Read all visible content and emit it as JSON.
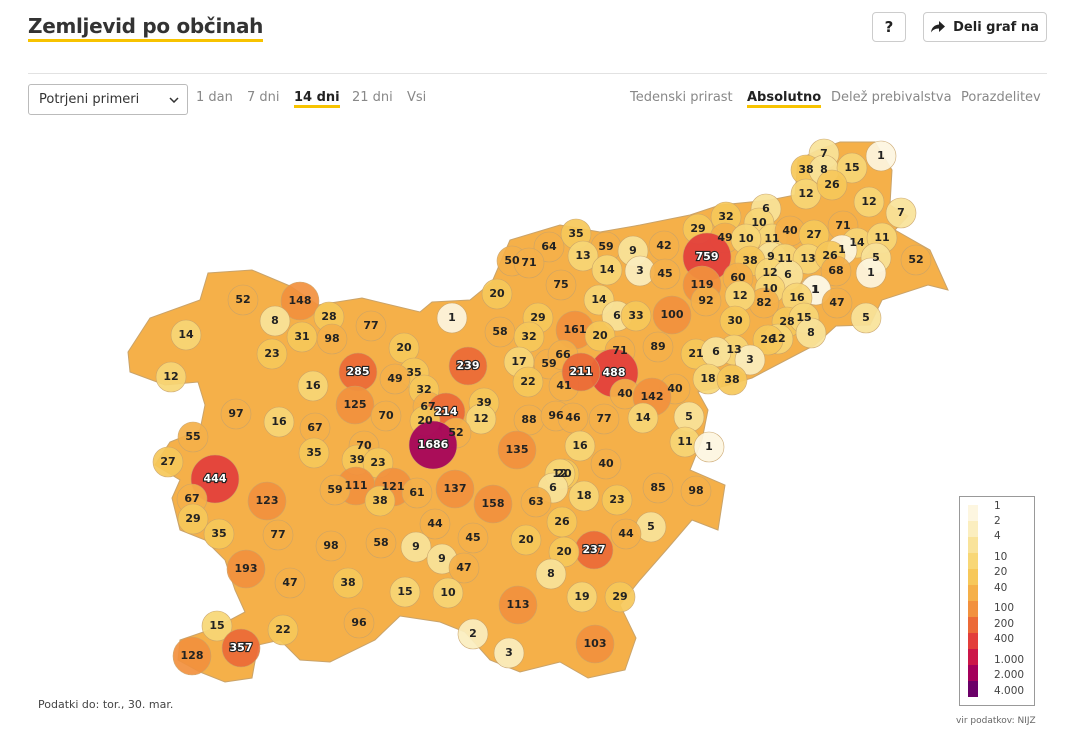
{
  "header": {
    "title": "Zemljevid po občinah",
    "help_label": "?",
    "share_label": "Deli graf na",
    "share_icon": "share-arrow-icon"
  },
  "controls": {
    "measure": {
      "selected": "Potrjeni primeri"
    },
    "ranges": [
      {
        "label": "1 dan",
        "active": false
      },
      {
        "label": "7 dni",
        "active": false
      },
      {
        "label": "14 dni",
        "active": true
      },
      {
        "label": "21 dni",
        "active": false
      },
      {
        "label": "Vsi",
        "active": false
      }
    ],
    "modes": [
      {
        "label": "Tedenski prirast",
        "active": false
      },
      {
        "label": "Absolutno",
        "active": true
      },
      {
        "label": "Delež prebivalstva",
        "active": false
      },
      {
        "label": "Porazdelitev",
        "active": false
      }
    ]
  },
  "legend": {
    "labels": [
      "1",
      "2",
      "4",
      "10",
      "20",
      "40",
      "100",
      "200",
      "400",
      "1.000",
      "2.000",
      "4.000"
    ],
    "colors": [
      "#fdf6e0",
      "#fbeebf",
      "#f9e39a",
      "#f8d776",
      "#f7c85a",
      "#f5b049",
      "#f2913e",
      "#ec6a37",
      "#e33e3b",
      "#cc1748",
      "#a4005b",
      "#6b0068"
    ]
  },
  "footnote": "Podatki do: tor., 30. mar.",
  "source": "vir podatkov: NIJZ",
  "municipality_values": [
    7,
    1,
    38,
    8,
    15,
    12,
    26,
    12,
    7,
    6,
    32,
    29,
    10,
    11,
    49,
    10,
    40,
    27,
    71,
    14,
    11,
    1,
    5,
    1,
    759,
    9,
    11,
    13,
    26,
    68,
    1,
    52,
    38,
    60,
    12,
    6,
    35,
    59,
    9,
    42,
    64,
    50,
    71,
    13,
    14,
    3,
    45,
    119,
    10,
    1,
    75,
    92,
    82,
    16,
    47,
    12,
    28,
    15,
    5,
    8,
    30,
    52,
    148,
    20,
    14,
    6,
    33,
    100,
    8,
    28,
    77,
    1,
    58,
    29,
    161,
    12,
    26,
    13,
    21,
    6,
    98,
    31,
    20,
    32,
    20,
    71,
    89,
    14,
    23,
    239,
    17,
    59,
    66,
    488,
    12,
    285,
    35,
    49,
    22,
    41,
    211,
    3,
    18,
    38,
    16,
    32,
    40,
    40,
    125,
    39,
    142,
    97,
    67,
    214,
    12,
    88,
    96,
    46,
    77,
    14,
    5,
    16,
    70,
    20,
    52,
    55,
    67,
    70,
    1686,
    11,
    1,
    27,
    35,
    39,
    23,
    135,
    16,
    40,
    20,
    444,
    111,
    121,
    61,
    137,
    12,
    6,
    85,
    59,
    38,
    158,
    63,
    18,
    23,
    98,
    67,
    123,
    29,
    26,
    44,
    5,
    35,
    77,
    98,
    58,
    9,
    44,
    45,
    20,
    237,
    20,
    9,
    193,
    47,
    38,
    15,
    47,
    8,
    10,
    96,
    113,
    19,
    29,
    15,
    22,
    357,
    2,
    128,
    103,
    3
  ]
}
